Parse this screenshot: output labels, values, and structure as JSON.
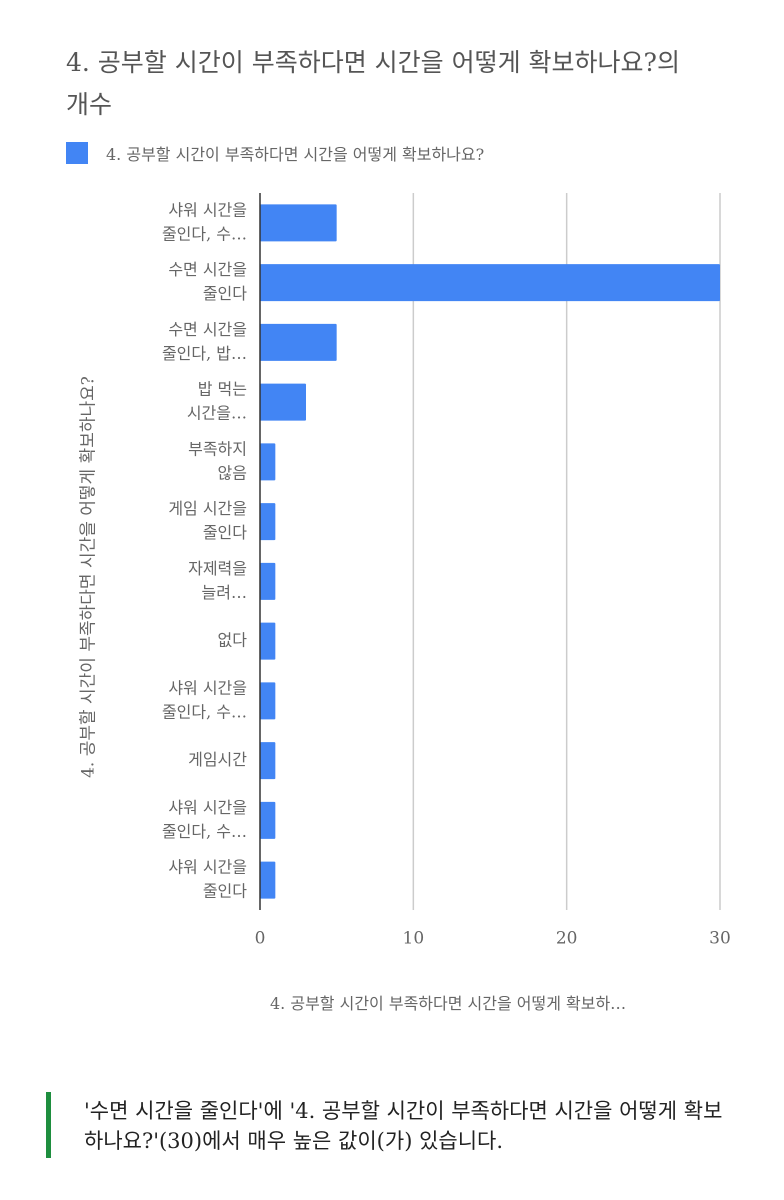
{
  "chart_data": {
    "type": "bar",
    "orientation": "horizontal",
    "title": "4. 공부할 시간이 부족하다면 시간을 어떻게 확보하나요?의 개수",
    "legend_label": "4. 공부할 시간이 부족하다면 시간을 어떻게 확보하나요?",
    "legend_position": "top",
    "xlabel": "4. 공부할 시간이 부족하다면 시간을 어떻게 확보하…",
    "ylabel": "4. 공부할 시간이 부족하다면 시간을 어떻게 확보하나요?",
    "xlim": [
      0,
      30
    ],
    "xticks": [
      0,
      10,
      20,
      30
    ],
    "grid": true,
    "bar_color": "#4285f4",
    "categories": [
      [
        "샤워 시간을",
        "줄인다, 수…"
      ],
      [
        "수면 시간을",
        "줄인다"
      ],
      [
        "수면 시간을",
        "줄인다, 밥…"
      ],
      [
        "밥 먹는",
        "시간을…"
      ],
      [
        "부족하지",
        "않음 "
      ],
      [
        "게임 시간을",
        "줄인다"
      ],
      [
        "자제력을",
        "늘려…"
      ],
      [
        "없다"
      ],
      [
        "샤워 시간을",
        "줄인다, 수…"
      ],
      [
        "게임시간"
      ],
      [
        "샤워 시간을",
        "줄인다, 수…"
      ],
      [
        "샤워 시간을",
        "줄인다"
      ]
    ],
    "values": [
      5,
      30,
      5,
      3,
      1,
      1,
      1,
      1,
      1,
      1,
      1,
      1
    ]
  },
  "insight": {
    "text": "'수면 시간을 줄인다'에 '4. 공부할 시간이 부족하다면 시간을 어떻게 확보하나요?'(30)에서 매우 높은 값이(가) 있습니다.",
    "accent_color": "#1e8e3e"
  }
}
